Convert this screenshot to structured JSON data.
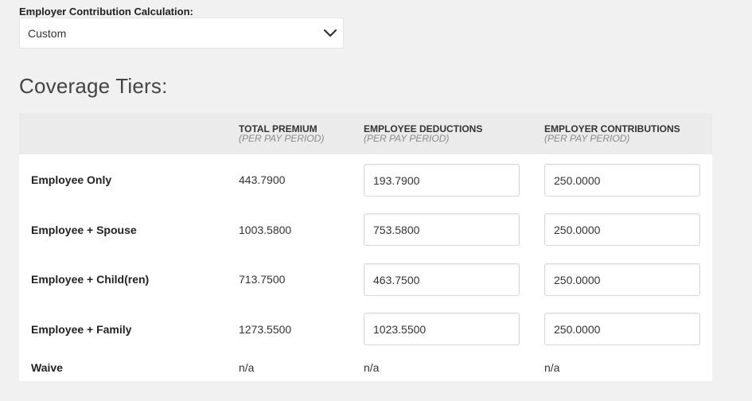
{
  "calc": {
    "label": "Employer Contribution Calculation:",
    "selected": "Custom",
    "chevron_icon": "chevron-down-icon"
  },
  "section_title": "Coverage Tiers:",
  "headers": {
    "total": {
      "main": "TOTAL PREMIUM",
      "sub": "(PER PAY PERIOD)"
    },
    "employee": {
      "main": "EMPLOYEE DEDUCTIONS",
      "sub": "(PER PAY PERIOD)"
    },
    "employer": {
      "main": "EMPLOYER CONTRIBUTIONS",
      "sub": "(PER PAY PERIOD)"
    }
  },
  "rows": [
    {
      "label": "Employee Only",
      "total": "443.7900",
      "employee": "193.7900",
      "employer": "250.0000"
    },
    {
      "label": "Employee + Spouse",
      "total": "1003.5800",
      "employee": "753.5800",
      "employer": "250.0000"
    },
    {
      "label": "Employee + Child(ren)",
      "total": "713.7500",
      "employee": "463.7500",
      "employer": "250.0000"
    },
    {
      "label": "Employee + Family",
      "total": "1273.5500",
      "employee": "1023.5500",
      "employer": "250.0000"
    }
  ],
  "waive": {
    "label": "Waive",
    "total": "n/a",
    "employee": "n/a",
    "employer": "n/a"
  }
}
